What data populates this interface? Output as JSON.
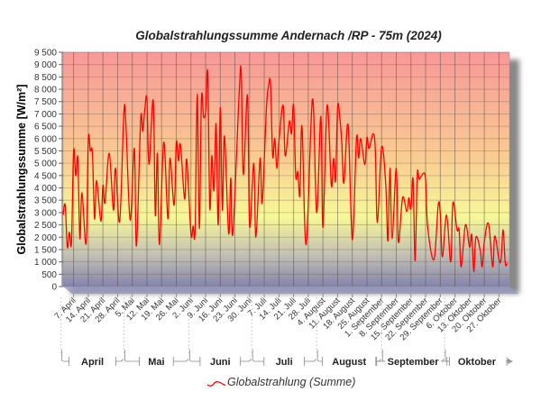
{
  "chart_data": {
    "type": "line",
    "title": "Globalstrahlungssumme Andernach /RP - 75m (2024)",
    "ylabel": "Globalstrahlungssumme [W/m²]",
    "xlabel": "",
    "ylim": [
      0,
      9500
    ],
    "xlim": [
      "2024-04-02",
      "2024-10-31"
    ],
    "grid": true,
    "legend_placement": "bottom",
    "colors": {
      "line": "#ff0000",
      "top": "#f89898",
      "middle": "#f8f898",
      "bottom": "#8484ac"
    },
    "yticks": [
      {
        "value": 0,
        "label": "0"
      },
      {
        "value": 500,
        "label": "500"
      },
      {
        "value": 1000,
        "label": "1 000"
      },
      {
        "value": 1500,
        "label": "1 500"
      },
      {
        "value": 2000,
        "label": "2 000"
      },
      {
        "value": 2500,
        "label": "2 500"
      },
      {
        "value": 3000,
        "label": "3 000"
      },
      {
        "value": 3500,
        "label": "3 500"
      },
      {
        "value": 4000,
        "label": "4 000"
      },
      {
        "value": 4500,
        "label": "4 500"
      },
      {
        "value": 5000,
        "label": "5 000"
      },
      {
        "value": 5500,
        "label": "5 500"
      },
      {
        "value": 6000,
        "label": "6 000"
      },
      {
        "value": 6500,
        "label": "6 500"
      },
      {
        "value": 7000,
        "label": "7 000"
      },
      {
        "value": 7500,
        "label": "7 500"
      },
      {
        "value": 8000,
        "label": "8 000"
      },
      {
        "value": 8500,
        "label": "8 500"
      },
      {
        "value": 9000,
        "label": "9 000"
      },
      {
        "value": 9500,
        "label": "9 500"
      }
    ],
    "xticks": [
      {
        "date": "2024-04-07",
        "label": "7. April"
      },
      {
        "date": "2024-04-14",
        "label": "14. April"
      },
      {
        "date": "2024-04-21",
        "label": "21. April"
      },
      {
        "date": "2024-04-28",
        "label": "28. April"
      },
      {
        "date": "2024-05-05",
        "label": "5. Mai"
      },
      {
        "date": "2024-05-12",
        "label": "12. Mai"
      },
      {
        "date": "2024-05-19",
        "label": "19. Mai"
      },
      {
        "date": "2024-05-26",
        "label": "26. Mai"
      },
      {
        "date": "2024-06-02",
        "label": "2. Juni"
      },
      {
        "date": "2024-06-09",
        "label": "9. Juni"
      },
      {
        "date": "2024-06-16",
        "label": "16. Juni"
      },
      {
        "date": "2024-06-23",
        "label": "23. Juni"
      },
      {
        "date": "2024-06-30",
        "label": "30. Juni"
      },
      {
        "date": "2024-07-07",
        "label": "7. Juli"
      },
      {
        "date": "2024-07-14",
        "label": "14. Juli"
      },
      {
        "date": "2024-07-21",
        "label": "21. Juli"
      },
      {
        "date": "2024-07-28",
        "label": "28. Juli"
      },
      {
        "date": "2024-08-04",
        "label": "4. August"
      },
      {
        "date": "2024-08-11",
        "label": "11. August"
      },
      {
        "date": "2024-08-18",
        "label": "18. August"
      },
      {
        "date": "2024-08-25",
        "label": "25. August"
      },
      {
        "date": "2024-09-01",
        "label": "1. September"
      },
      {
        "date": "2024-09-08",
        "label": "8. September"
      },
      {
        "date": "2024-09-15",
        "label": "15. September"
      },
      {
        "date": "2024-09-22",
        "label": "22. September"
      },
      {
        "date": "2024-09-29",
        "label": "29. September"
      },
      {
        "date": "2024-10-06",
        "label": "6. Oktober"
      },
      {
        "date": "2024-10-13",
        "label": "13. Oktober"
      },
      {
        "date": "2024-10-20",
        "label": "20. Oktober"
      },
      {
        "date": "2024-10-27",
        "label": "27. Oktober"
      }
    ],
    "months": [
      {
        "label": "April",
        "start": "2024-04-01",
        "end": "2024-05-01"
      },
      {
        "label": "Mai",
        "start": "2024-05-01",
        "end": "2024-06-01"
      },
      {
        "label": "Juni",
        "start": "2024-06-01",
        "end": "2024-07-01"
      },
      {
        "label": "Juli",
        "start": "2024-07-01",
        "end": "2024-08-01"
      },
      {
        "label": "August",
        "start": "2024-08-01",
        "end": "2024-09-01"
      },
      {
        "label": "September",
        "start": "2024-09-01",
        "end": "2024-10-01"
      },
      {
        "label": "Oktober",
        "start": "2024-10-01",
        "end": "2024-11-01"
      }
    ],
    "series": [
      {
        "name": "Globalstrahlung (Summe)",
        "x": [
          "2024-04-02",
          "2024-04-03",
          "2024-04-04",
          "2024-04-05",
          "2024-04-06",
          "2024-04-07",
          "2024-04-08",
          "2024-04-09",
          "2024-04-10",
          "2024-04-11",
          "2024-04-13",
          "2024-04-14",
          "2024-04-15",
          "2024-04-16",
          "2024-04-17",
          "2024-04-18",
          "2024-04-20",
          "2024-04-21",
          "2024-04-22",
          "2024-04-24",
          "2024-04-26",
          "2024-04-27",
          "2024-04-29",
          "2024-05-01",
          "2024-05-02",
          "2024-05-04",
          "2024-05-06",
          "2024-05-07",
          "2024-05-09",
          "2024-05-10",
          "2024-05-11",
          "2024-05-12",
          "2024-05-13",
          "2024-05-15",
          "2024-05-16",
          "2024-05-17",
          "2024-05-18",
          "2024-05-20",
          "2024-05-22",
          "2024-05-23",
          "2024-05-25",
          "2024-05-26",
          "2024-05-27",
          "2024-05-28",
          "2024-05-30",
          "2024-05-31",
          "2024-06-02",
          "2024-06-03",
          "2024-06-04",
          "2024-06-05",
          "2024-06-06",
          "2024-06-07",
          "2024-06-08",
          "2024-06-09",
          "2024-06-10",
          "2024-06-11",
          "2024-06-12",
          "2024-06-13",
          "2024-06-14",
          "2024-06-15",
          "2024-06-16",
          "2024-06-17",
          "2024-06-18",
          "2024-06-20",
          "2024-06-21",
          "2024-06-22",
          "2024-06-25",
          "2024-06-26",
          "2024-06-27",
          "2024-06-29",
          "2024-06-30",
          "2024-07-02",
          "2024-07-03",
          "2024-07-05",
          "2024-07-06",
          "2024-07-08",
          "2024-07-09",
          "2024-07-10",
          "2024-07-11",
          "2024-07-12",
          "2024-07-13",
          "2024-07-14",
          "2024-07-16",
          "2024-07-17",
          "2024-07-19",
          "2024-07-20",
          "2024-07-21",
          "2024-07-22",
          "2024-07-23",
          "2024-07-24",
          "2024-07-25",
          "2024-07-27",
          "2024-07-30",
          "2024-08-01",
          "2024-08-03",
          "2024-08-04",
          "2024-08-06",
          "2024-08-08",
          "2024-08-09",
          "2024-08-10",
          "2024-08-11",
          "2024-08-12",
          "2024-08-13",
          "2024-08-14",
          "2024-08-16",
          "2024-08-18",
          "2024-08-20",
          "2024-08-21",
          "2024-08-22",
          "2024-08-24",
          "2024-08-25",
          "2024-08-26",
          "2024-08-28",
          "2024-08-29",
          "2024-08-30",
          "2024-09-01",
          "2024-09-03",
          "2024-09-04",
          "2024-09-05",
          "2024-09-06",
          "2024-09-08",
          "2024-09-09",
          "2024-09-11",
          "2024-09-13",
          "2024-09-14",
          "2024-09-15",
          "2024-09-16",
          "2024-09-17",
          "2024-09-18",
          "2024-09-19",
          "2024-09-21",
          "2024-09-22",
          "2024-09-23",
          "2024-09-26",
          "2024-09-28",
          "2024-09-29",
          "2024-09-30",
          "2024-10-02",
          "2024-10-04",
          "2024-10-05",
          "2024-10-07",
          "2024-10-08",
          "2024-10-09",
          "2024-10-11",
          "2024-10-13",
          "2024-10-14",
          "2024-10-15",
          "2024-10-16",
          "2024-10-18",
          "2024-10-19",
          "2024-10-20",
          "2024-10-22",
          "2024-10-24",
          "2024-10-25",
          "2024-10-27",
          "2024-10-28",
          "2024-10-29",
          "2024-10-30",
          "2024-10-31"
        ],
        "values": [
          2900,
          3300,
          1600,
          2200,
          1800,
          5500,
          4500,
          5200,
          1950,
          3800,
          1750,
          5950,
          5500,
          5400,
          2750,
          4300,
          2650,
          4100,
          3400,
          5400,
          3100,
          4800,
          2650,
          7050,
          6500,
          2700,
          5600,
          1650,
          6750,
          6300,
          7200,
          7600,
          4950,
          7550,
          2900,
          5400,
          1700,
          5850,
          2750,
          5200,
          3300,
          5850,
          5100,
          5750,
          3550,
          5150,
          2150,
          2450,
          2300,
          7800,
          2350,
          7600,
          6900,
          7100,
          8650,
          3200,
          5300,
          3900,
          6600,
          2500,
          7250,
          3100,
          6100,
          2150,
          4400,
          2150,
          7800,
          8650,
          4550,
          7750,
          2450,
          5000,
          2000,
          5200,
          3400,
          7200,
          8100,
          8200,
          5300,
          6000,
          4800,
          5900,
          7350,
          5300,
          6700,
          6200,
          7350,
          4500,
          4650,
          3700,
          6500,
          1700,
          7600,
          3000,
          6900,
          2400,
          7350,
          4100,
          5200,
          4300,
          7250,
          6900,
          5800,
          4200,
          6550,
          1900,
          6000,
          5200,
          6000,
          4950,
          6050,
          5600,
          6200,
          5500,
          2600,
          5650,
          4100,
          1850,
          4800,
          1950,
          4800,
          1800,
          3600,
          3050,
          3600,
          3150,
          4350,
          1050,
          4500,
          4350,
          4600,
          4300,
          2400,
          1100,
          3300,
          2950,
          1200,
          2900,
          1000,
          3400,
          2300,
          2300,
          800,
          2500,
          1600,
          2100,
          600,
          2000,
          1500,
          800,
          1800,
          2550,
          800,
          2050,
          1100,
          1100,
          2300,
          950,
          950
        ]
      }
    ]
  }
}
